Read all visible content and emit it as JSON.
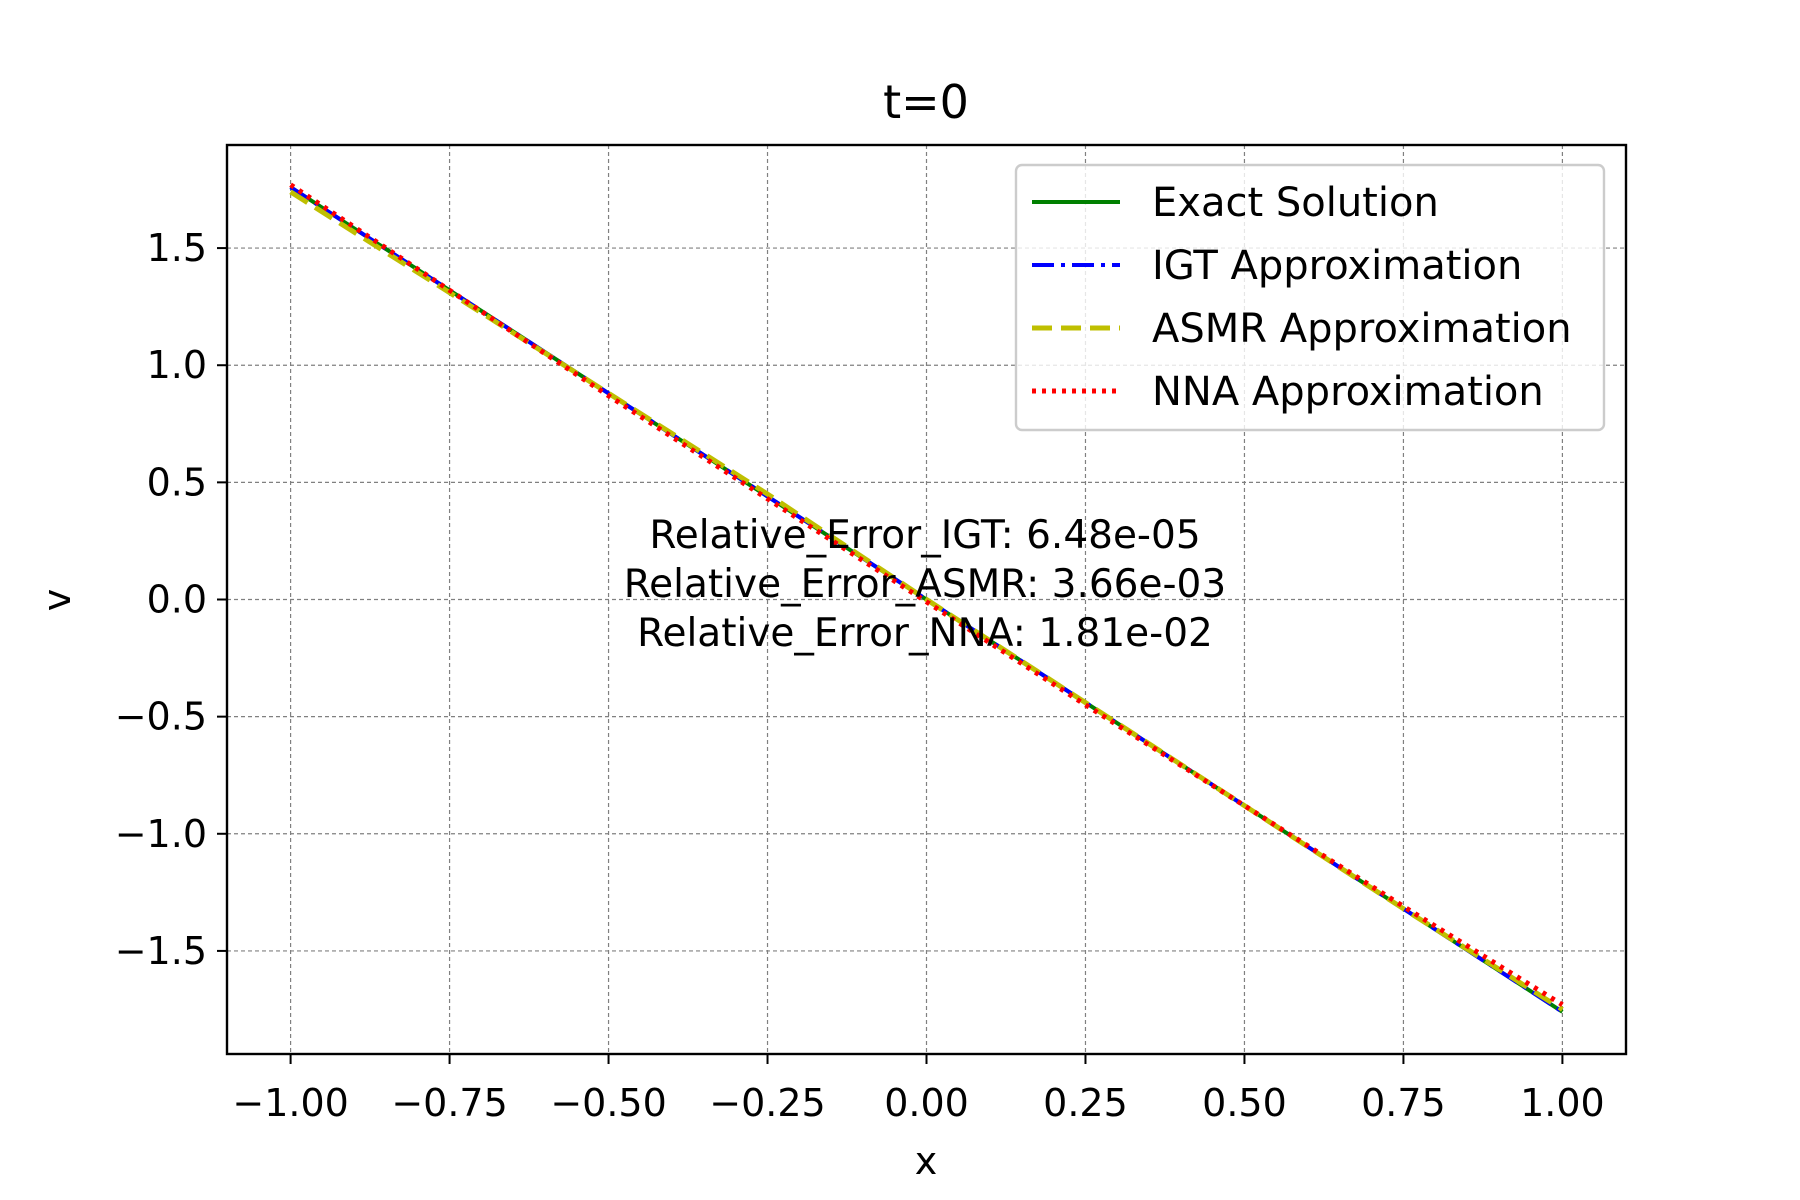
{
  "chart_data": {
    "type": "line",
    "title": "t=0",
    "xlabel": "x",
    "ylabel": "v",
    "xlim": [
      -1.1,
      1.1
    ],
    "ylim": [
      -1.94,
      1.94
    ],
    "xticks": [
      -1.0,
      -0.75,
      -0.5,
      -0.25,
      0.0,
      0.25,
      0.5,
      0.75,
      1.0
    ],
    "xtick_labels": [
      "−1.00",
      "−0.75",
      "−0.50",
      "−0.25",
      "0.00",
      "0.25",
      "0.50",
      "0.75",
      "1.00"
    ],
    "yticks": [
      1.5,
      1.0,
      0.5,
      0.0,
      -0.5,
      -1.0,
      -1.5
    ],
    "ytick_labels": [
      "1.5",
      "1.0",
      "0.5",
      "0.0",
      "−0.5",
      "−1.0",
      "−1.5"
    ],
    "grid": true,
    "legend_position": "top-right",
    "series": [
      {
        "name": "Exact Solution",
        "color": "#008000",
        "style": "solid",
        "x": [
          -1.0,
          -0.75,
          -0.5,
          -0.25,
          0.0,
          0.25,
          0.5,
          0.75,
          1.0
        ],
        "y": [
          1.76,
          1.32,
          0.88,
          0.44,
          0.0,
          -0.44,
          -0.88,
          -1.32,
          -1.76
        ]
      },
      {
        "name": "IGT Approximation",
        "color": "#0000ff",
        "style": "dashdot",
        "x": [
          -1.0,
          -0.75,
          -0.5,
          -0.25,
          0.0,
          0.25,
          0.5,
          0.75,
          1.0
        ],
        "y": [
          1.76,
          1.32,
          0.88,
          0.44,
          0.0,
          -0.44,
          -0.88,
          -1.32,
          -1.76
        ]
      },
      {
        "name": "ASMR Approximation",
        "color": "#bfbf00",
        "style": "dashed",
        "x": [
          -1.0,
          -0.75,
          -0.5,
          -0.25,
          0.0,
          0.25,
          0.5,
          0.75,
          1.0
        ],
        "y": [
          1.74,
          1.31,
          0.88,
          0.45,
          0.0,
          -0.44,
          -0.88,
          -1.32,
          -1.75
        ]
      },
      {
        "name": "NNA Approximation",
        "color": "#ff0000",
        "style": "dotted",
        "x": [
          -1.0,
          -0.75,
          -0.5,
          -0.25,
          0.0,
          0.25,
          0.5,
          0.75,
          1.0
        ],
        "y": [
          1.77,
          1.32,
          0.87,
          0.43,
          -0.01,
          -0.45,
          -0.88,
          -1.31,
          -1.73
        ]
      }
    ],
    "annotations": [
      "Relative_Error_IGT: 6.48e-05",
      "Relative_Error_ASMR: 3.66e-03",
      "Relative_Error_NNA: 1.81e-02"
    ]
  }
}
